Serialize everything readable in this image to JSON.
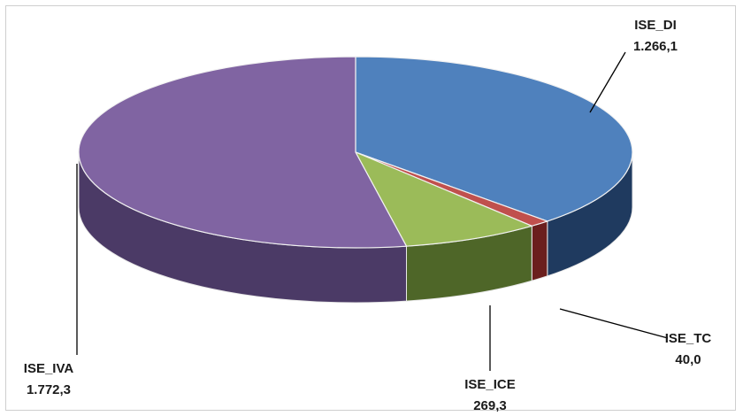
{
  "chart_data": {
    "type": "pie",
    "title": "",
    "slices": [
      {
        "name": "ISE_DI",
        "value_label": "1.266,1",
        "value": 1266.1,
        "color": "#4F81BD",
        "side_color": "#1F3A5F"
      },
      {
        "name": "ISE_TC",
        "value_label": "40,0",
        "value": 40.0,
        "color": "#C0504D",
        "side_color": "#6B1F1D"
      },
      {
        "name": "ISE_ICE",
        "value_label": "269,3",
        "value": 269.3,
        "color": "#9BBB59",
        "side_color": "#4E6628"
      },
      {
        "name": "ISE_IVA",
        "value_label": "1.772,3",
        "value": 1772.3,
        "color": "#8064A2",
        "side_color": "#4B3A66"
      }
    ],
    "legend": "none",
    "style": "3d-pie"
  }
}
